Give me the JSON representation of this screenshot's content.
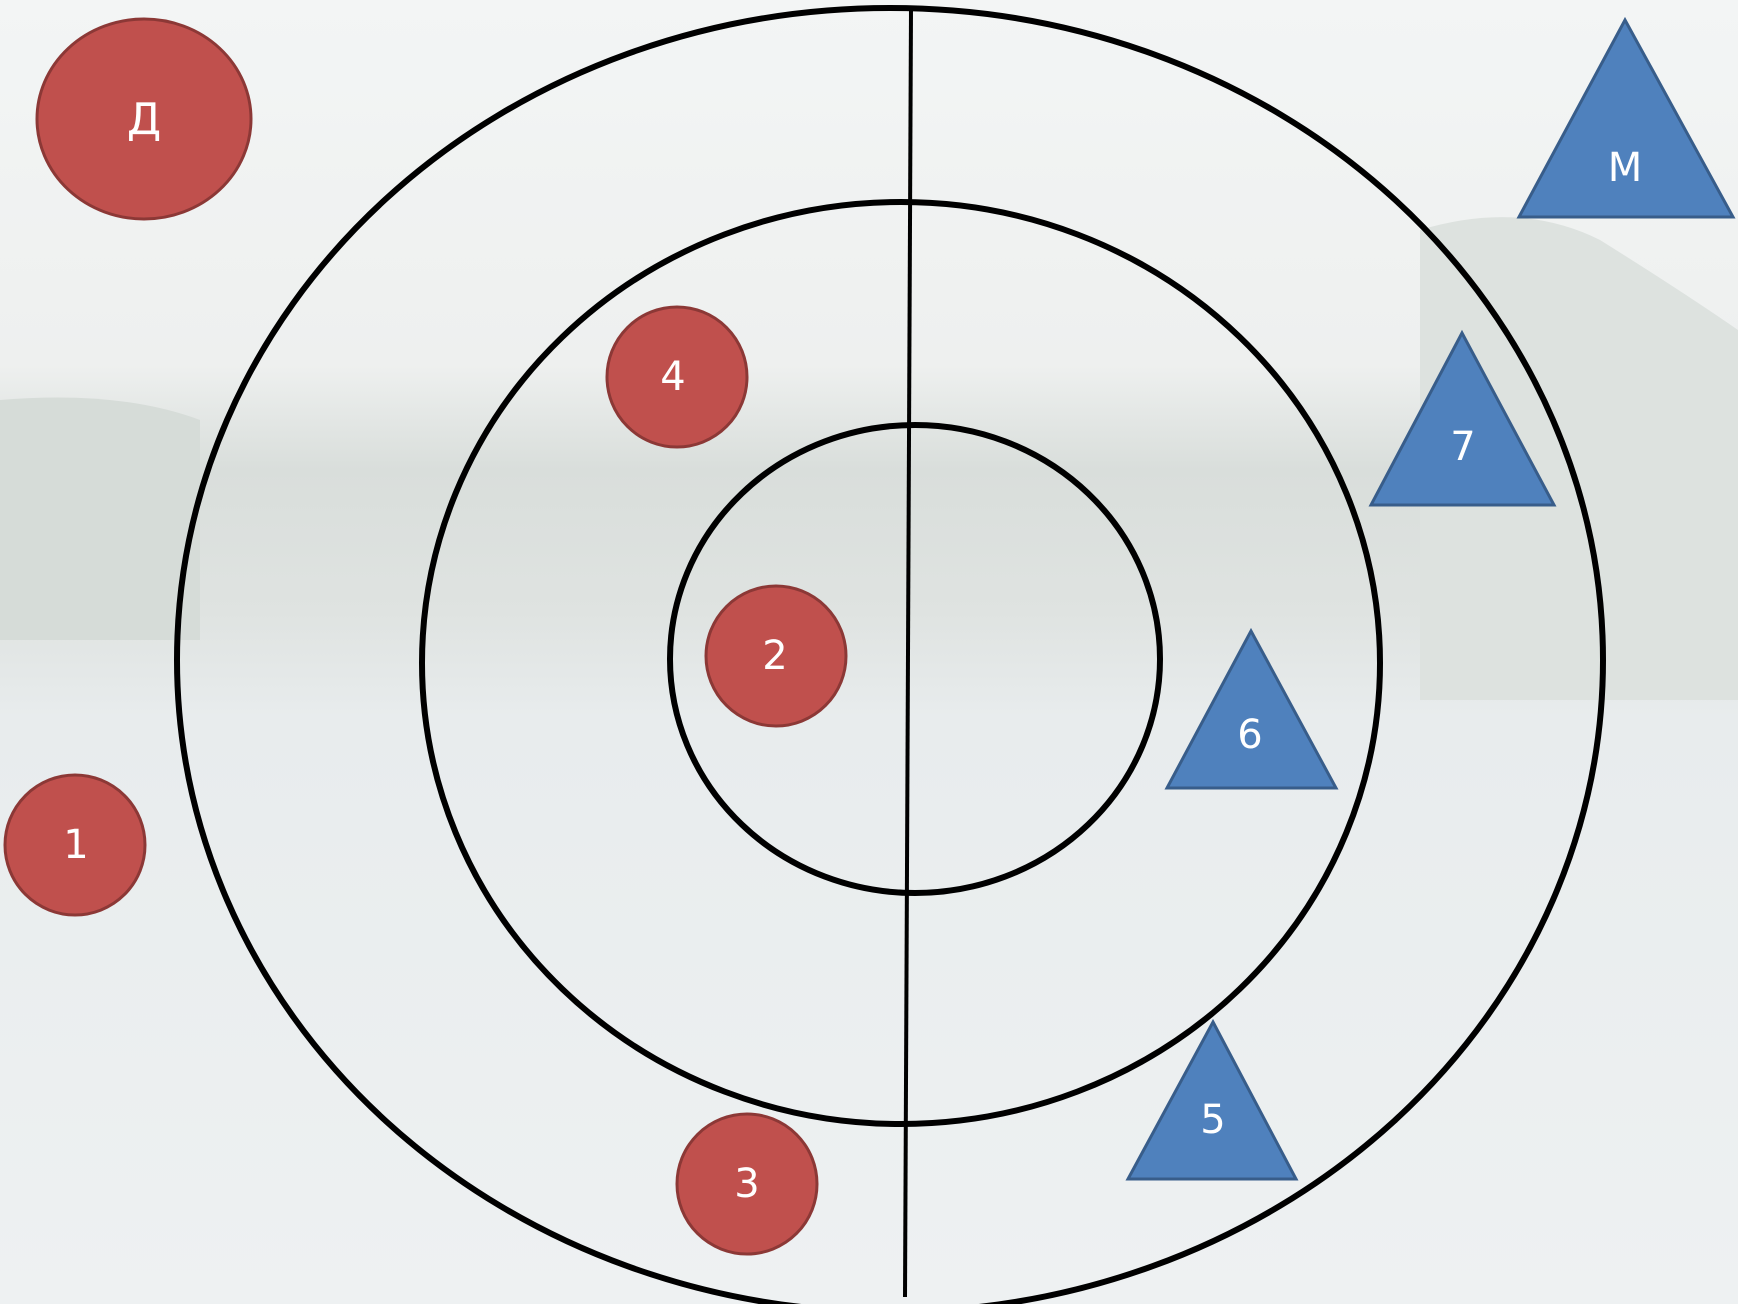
{
  "circles": [
    {
      "label": "Д"
    },
    {
      "label": "4"
    },
    {
      "label": "2"
    },
    {
      "label": "1"
    },
    {
      "label": "3"
    }
  ],
  "triangles": [
    {
      "label": "М"
    },
    {
      "label": "7"
    },
    {
      "label": "6"
    },
    {
      "label": "5"
    }
  ]
}
